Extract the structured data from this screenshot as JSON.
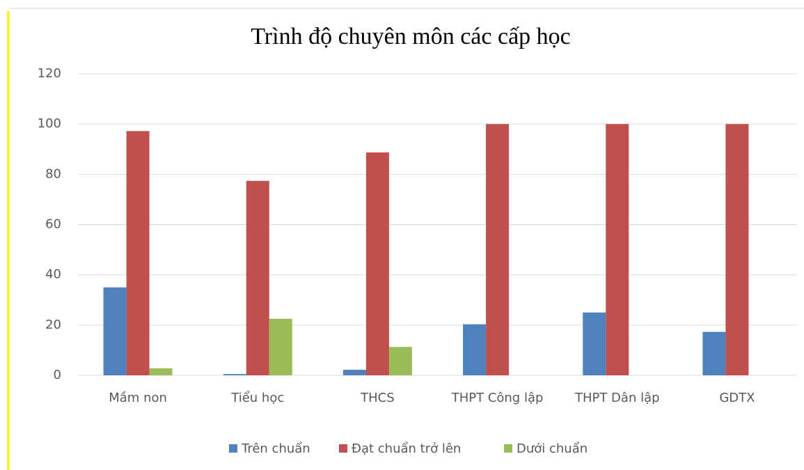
{
  "chart_data": {
    "type": "bar",
    "title": "Trình độ chuyên môn các cấp  học",
    "categories": [
      "Mầm non",
      "Tiểu học",
      "THCS",
      "THPT Công lập",
      "THPT Dân lập",
      "GDTX"
    ],
    "series": [
      {
        "name": "Trên chuẩn",
        "color": "#4f81bd",
        "values": [
          35,
          0.5,
          2.2,
          20.3,
          25,
          17.3
        ]
      },
      {
        "name": "Đạt chuẩn trở lên",
        "color": "#c0504d",
        "values": [
          97.2,
          77.4,
          88.7,
          100,
          100,
          100
        ]
      },
      {
        "name": "Dưới chuẩn",
        "color": "#9bbb59",
        "values": [
          2.8,
          22.5,
          11.3,
          0,
          0,
          0
        ]
      }
    ],
    "ylim": [
      0,
      120
    ],
    "yticks": [
      0,
      20,
      40,
      60,
      80,
      100,
      120
    ],
    "grid": true,
    "legend": "bottom"
  }
}
